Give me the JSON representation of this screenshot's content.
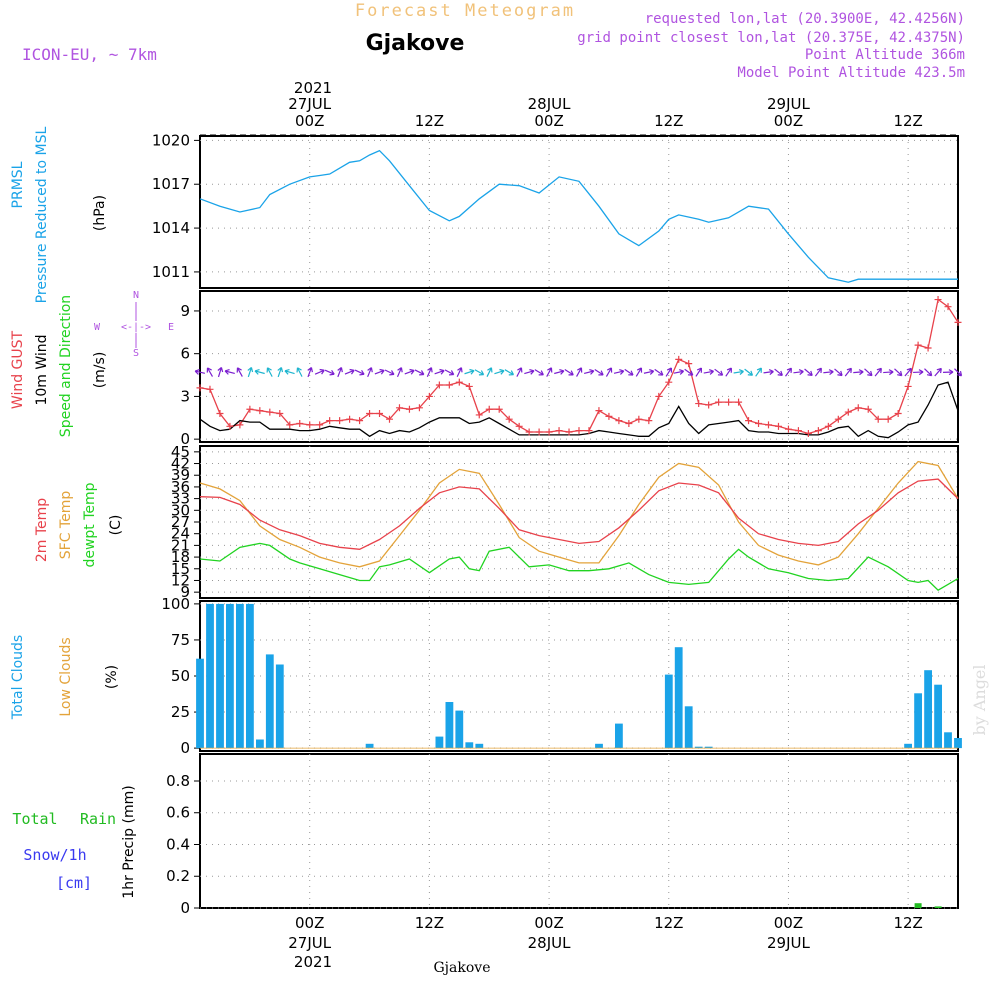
{
  "header": {
    "title": "Forecast Meteogram",
    "station": "Gjakove",
    "model": "ICON-EU, ~ 7km",
    "requested": "requested lon,lat (20.3900E, 42.4256N)",
    "gridpoint": "grid point closest lon,lat (20.375E, 42.4375N)",
    "point_alt": "Point Altitude 366m",
    "model_alt": "Model Point Altitude 423.5m",
    "footer_station": "Gjakove",
    "watermark": "by Angel"
  },
  "colors": {
    "pressure": "#1aa3e8",
    "gust": "#e8424b",
    "wind": "#000000",
    "temp2m": "#e8424b",
    "sfctemp": "#e3a33a",
    "dewpt": "#21d321",
    "cloud_total": "#1aa3e8",
    "rain": "#22bb22",
    "purple": "#b054e0",
    "orange": "#f1c27a",
    "blue": "#3a3af0"
  },
  "time_axis": {
    "top_year": "2021",
    "top_labels": [
      {
        "t": 0,
        "hour": "00Z",
        "date": "27JUL"
      },
      {
        "t": 12,
        "hour": "12Z",
        "date": ""
      },
      {
        "t": 24,
        "hour": "00Z",
        "date": "28JUL"
      },
      {
        "t": 36,
        "hour": "12Z",
        "date": ""
      },
      {
        "t": 48,
        "hour": "00Z",
        "date": "29JUL"
      },
      {
        "t": 60,
        "hour": "12Z",
        "date": ""
      }
    ],
    "bottom_year": "2021",
    "range_hours": [
      -11,
      65
    ]
  },
  "panel_labels": {
    "pressure": [
      "PRMSL",
      "Pressure Reduced to MSL",
      "(hPa)"
    ],
    "wind": [
      "Wind GUST",
      "10m Wind",
      "Speed and Direction",
      "(m/s)"
    ],
    "compass": {
      "n": "N",
      "s": "S",
      "w": "W",
      "e": "E",
      "arrows": "<-|->"
    },
    "temp": [
      "2m Temp",
      "SFC Temp",
      "dewpt Temp",
      "(C)"
    ],
    "clouds": [
      "Total Clouds",
      "Low Clouds",
      "(%)"
    ],
    "precip": [
      "Total",
      "Rain",
      "Snow/1h",
      "[cm]",
      "1hr Precip (mm)"
    ]
  },
  "chart_data": [
    {
      "type": "line",
      "id": "pressure",
      "title": "PRMSL Pressure Reduced to MSL",
      "ylabel": "(hPa)",
      "ylim": [
        1009.9,
        1020.3
      ],
      "yticks": [
        1011,
        1014,
        1017,
        1020
      ],
      "series": [
        {
          "name": "PRMSL",
          "x": [
            -11,
            -9,
            -7,
            -5,
            -4,
            -2,
            0,
            1,
            2,
            3,
            4,
            5,
            6,
            7,
            8,
            10,
            12,
            14,
            15,
            17,
            19,
            21,
            23,
            25,
            27,
            29,
            31,
            33,
            35,
            36,
            37,
            39,
            40,
            42,
            44,
            46,
            48,
            50,
            52,
            54,
            55,
            56,
            58,
            60,
            61,
            63,
            64,
            65
          ],
          "y": [
            1016.0,
            1015.5,
            1015.1,
            1015.4,
            1016.3,
            1017.0,
            1017.5,
            1017.6,
            1017.7,
            1018.1,
            1018.5,
            1018.6,
            1019.0,
            1019.3,
            1018.6,
            1016.9,
            1015.2,
            1014.5,
            1014.8,
            1016.0,
            1017.0,
            1016.9,
            1016.4,
            1017.5,
            1017.2,
            1015.5,
            1013.6,
            1012.8,
            1013.8,
            1014.6,
            1014.9,
            1014.6,
            1014.4,
            1014.7,
            1015.5,
            1015.3,
            1013.6,
            1012.0,
            1010.6,
            1010.3,
            1010.5,
            1010.5,
            1010.5,
            1010.5,
            1010.5,
            1010.5,
            1010.5,
            1010.5
          ]
        }
      ]
    },
    {
      "type": "line",
      "id": "wind",
      "title": "Wind GUST / 10m Wind Speed and Direction",
      "ylabel": "(m/s)",
      "ylim": [
        -0.2,
        10.4
      ],
      "yticks": [
        0,
        3,
        6,
        9
      ],
      "series": [
        {
          "name": "Wind GUST",
          "x": [
            -11,
            -10,
            -9,
            -8,
            -7,
            -6,
            -5,
            -4,
            -3,
            -2,
            -1,
            0,
            1,
            2,
            3,
            4,
            5,
            6,
            7,
            8,
            9,
            10,
            11,
            12,
            13,
            14,
            15,
            16,
            17,
            18,
            19,
            20,
            21,
            22,
            23,
            24,
            25,
            26,
            27,
            28,
            29,
            30,
            31,
            32,
            33,
            34,
            35,
            36,
            37,
            38,
            39,
            40,
            41,
            42,
            43,
            44,
            45,
            46,
            47,
            48,
            49,
            50,
            51,
            52,
            53,
            54,
            55,
            56,
            57,
            58,
            59,
            60,
            61,
            62,
            63,
            64,
            65
          ],
          "y": [
            3.6,
            3.5,
            1.8,
            0.9,
            1.0,
            2.1,
            2.0,
            1.9,
            1.8,
            1.0,
            1.1,
            1.0,
            1.0,
            1.3,
            1.3,
            1.4,
            1.3,
            1.8,
            1.8,
            1.4,
            2.2,
            2.1,
            2.2,
            3.0,
            3.8,
            3.8,
            4.0,
            3.7,
            1.7,
            2.1,
            2.1,
            1.4,
            0.9,
            0.5,
            0.5,
            0.5,
            0.6,
            0.5,
            0.6,
            0.6,
            2.0,
            1.6,
            1.3,
            1.1,
            1.4,
            1.3,
            3.0,
            4.0,
            5.6,
            5.3,
            2.5,
            2.4,
            2.6,
            2.6,
            2.6,
            1.3,
            1.1,
            1.0,
            0.9,
            0.7,
            0.6,
            0.4,
            0.6,
            0.9,
            1.4,
            1.9,
            2.2,
            2.1,
            1.4,
            1.4,
            1.8,
            3.7,
            6.6,
            6.4,
            9.8,
            9.3,
            8.2
          ]
        },
        {
          "name": "10m Wind",
          "x": [
            -11,
            -10,
            -9,
            -8,
            -7,
            -6,
            -5,
            -4,
            -3,
            -2,
            -1,
            0,
            1,
            2,
            3,
            4,
            5,
            6,
            7,
            8,
            9,
            10,
            11,
            12,
            13,
            14,
            15,
            16,
            17,
            18,
            19,
            20,
            21,
            22,
            23,
            24,
            25,
            26,
            27,
            28,
            29,
            30,
            31,
            32,
            33,
            34,
            35,
            36,
            37,
            38,
            39,
            40,
            41,
            42,
            43,
            44,
            45,
            46,
            47,
            48,
            49,
            50,
            51,
            52,
            53,
            54,
            55,
            56,
            57,
            58,
            59,
            60,
            61,
            62,
            63,
            64,
            65
          ],
          "y": [
            1.4,
            0.9,
            0.6,
            0.7,
            1.3,
            1.2,
            1.2,
            0.7,
            0.7,
            0.7,
            0.6,
            0.6,
            0.7,
            0.9,
            0.8,
            0.7,
            0.7,
            0.2,
            0.6,
            0.4,
            0.6,
            0.5,
            0.8,
            1.2,
            1.5,
            1.5,
            1.5,
            1.1,
            1.2,
            1.5,
            1.1,
            0.7,
            0.3,
            0.3,
            0.3,
            0.3,
            0.3,
            0.3,
            0.3,
            0.4,
            0.6,
            0.5,
            0.4,
            0.3,
            0.2,
            0.2,
            0.8,
            1.1,
            2.3,
            1.1,
            0.4,
            1.0,
            1.1,
            1.2,
            1.3,
            0.6,
            0.5,
            0.5,
            0.4,
            0.4,
            0.4,
            0.3,
            0.3,
            0.5,
            0.8,
            0.9,
            0.2,
            0.6,
            0.2,
            0.1,
            0.5,
            1.0,
            1.2,
            2.4,
            3.8,
            4.0,
            2.0
          ]
        }
      ]
    },
    {
      "type": "line",
      "id": "temperature",
      "title": "2m Temp / SFC Temp / dewpt Temp",
      "ylabel": "(C)",
      "ylim": [
        7.5,
        46.5
      ],
      "yticks": [
        9,
        12,
        15,
        18,
        21,
        24,
        27,
        30,
        33,
        36,
        39,
        42,
        45
      ],
      "series": [
        {
          "name": "2m Temp",
          "x": [
            -11,
            -9,
            -7,
            -5,
            -3,
            -1,
            1,
            3,
            5,
            7,
            9,
            11,
            13,
            15,
            17,
            19,
            21,
            23,
            25,
            27,
            29,
            31,
            33,
            35,
            37,
            39,
            41,
            43,
            45,
            47,
            49,
            51,
            53,
            55,
            57,
            59,
            61,
            63,
            65
          ],
          "y": [
            33.5,
            33.3,
            31.5,
            27.5,
            25.0,
            23.5,
            21.5,
            20.5,
            20.0,
            22.5,
            26.0,
            30.5,
            34.5,
            36.0,
            35.5,
            30.5,
            25.0,
            23.5,
            22.5,
            21.5,
            22.0,
            25.5,
            30.0,
            35.0,
            37.0,
            36.5,
            34.5,
            28.0,
            24.0,
            22.5,
            21.5,
            21.0,
            22.0,
            26.5,
            30.0,
            34.5,
            37.5,
            38.0,
            33.0
          ]
        },
        {
          "name": "SFC Temp",
          "x": [
            -11,
            -9,
            -7,
            -5,
            -3,
            -1,
            1,
            3,
            5,
            7,
            9,
            11,
            13,
            15,
            17,
            19,
            21,
            23,
            25,
            27,
            29,
            31,
            33,
            35,
            37,
            39,
            41,
            43,
            45,
            47,
            49,
            51,
            53,
            55,
            57,
            59,
            61,
            63,
            65
          ],
          "y": [
            37.0,
            35.5,
            32.5,
            26.0,
            22.5,
            20.5,
            18.0,
            16.5,
            15.5,
            17.0,
            23.5,
            30.0,
            37.0,
            40.5,
            39.5,
            31.5,
            23.0,
            19.5,
            18.0,
            16.5,
            16.5,
            23.5,
            31.5,
            38.5,
            42.0,
            41.0,
            36.5,
            27.0,
            21.0,
            18.5,
            17.0,
            16.0,
            18.0,
            24.0,
            30.5,
            37.0,
            42.5,
            41.5,
            33.0
          ]
        },
        {
          "name": "dewpt Temp",
          "x": [
            -11,
            -9,
            -7,
            -5,
            -4,
            -2,
            -1,
            1,
            3,
            5,
            6,
            7,
            8,
            10,
            12,
            14,
            15,
            16,
            17,
            18,
            20,
            22,
            24,
            26,
            28,
            30,
            32,
            34,
            36,
            38,
            40,
            42,
            43,
            44,
            46,
            48,
            50,
            52,
            54,
            56,
            58,
            60,
            61,
            62,
            63,
            64,
            65
          ],
          "y": [
            17.5,
            17.0,
            20.5,
            21.5,
            21.0,
            17.5,
            16.5,
            15.0,
            13.5,
            12.0,
            12.0,
            15.5,
            16.0,
            17.5,
            14.0,
            17.5,
            18.0,
            15.0,
            14.5,
            19.5,
            20.5,
            15.5,
            16.0,
            14.5,
            14.5,
            15.0,
            16.5,
            13.5,
            11.5,
            11.0,
            11.5,
            17.5,
            20.0,
            18.0,
            15.0,
            14.0,
            12.5,
            12.0,
            12.5,
            18.0,
            15.5,
            12.0,
            11.5,
            12.0,
            9.5,
            11.0,
            12.5
          ]
        }
      ]
    },
    {
      "type": "bar",
      "id": "clouds",
      "title": "Total Clouds / Low Clouds",
      "ylabel": "(%)",
      "ylim": [
        -2,
        102
      ],
      "yticks": [
        0,
        25,
        50,
        75,
        100
      ],
      "series": [
        {
          "name": "Total Clouds",
          "x": [
            -11,
            -10,
            -9,
            -8,
            -7,
            -6,
            -5,
            -4,
            -3,
            -2,
            -1,
            0,
            1,
            2,
            3,
            4,
            5,
            6,
            7,
            8,
            9,
            10,
            11,
            12,
            13,
            14,
            15,
            16,
            17,
            18,
            19,
            20,
            21,
            22,
            23,
            24,
            25,
            26,
            27,
            28,
            29,
            30,
            31,
            32,
            33,
            34,
            35,
            36,
            37,
            38,
            39,
            40,
            41,
            42,
            43,
            44,
            45,
            46,
            47,
            48,
            49,
            50,
            51,
            52,
            53,
            54,
            55,
            56,
            57,
            58,
            59,
            60,
            61,
            62,
            63,
            64,
            65
          ],
          "y": [
            62,
            100,
            100,
            100,
            100,
            100,
            6,
            65,
            58,
            0,
            0,
            0,
            0,
            0,
            0,
            0,
            0,
            3,
            0,
            0,
            0,
            0,
            0,
            0,
            8,
            32,
            26,
            4,
            3,
            0,
            0,
            0,
            0,
            0,
            0,
            0,
            0,
            0,
            0,
            0,
            3,
            0,
            17,
            0,
            0,
            0,
            0,
            51,
            70,
            29,
            1,
            1,
            0,
            0,
            0,
            0,
            0,
            0,
            0,
            0,
            0,
            0,
            0,
            0,
            0,
            0,
            0,
            0,
            0,
            0,
            0,
            3,
            38,
            54,
            44,
            11,
            7
          ]
        },
        {
          "name": "Low Clouds",
          "x": [
            -11,
            65
          ],
          "y": [
            0,
            0
          ]
        }
      ]
    },
    {
      "type": "bar",
      "id": "precip",
      "title": "1hr Precip",
      "ylabel": "1hr Precip (mm)",
      "ylim": [
        0,
        0.97
      ],
      "yticks": [
        0,
        0.2,
        0.4,
        0.6,
        0.8
      ],
      "series": [
        {
          "name": "Total Rain",
          "x": [
            61,
            63
          ],
          "y": [
            0.03,
            0.01
          ]
        },
        {
          "name": "Snow/1h",
          "x": [],
          "y": []
        }
      ]
    }
  ]
}
